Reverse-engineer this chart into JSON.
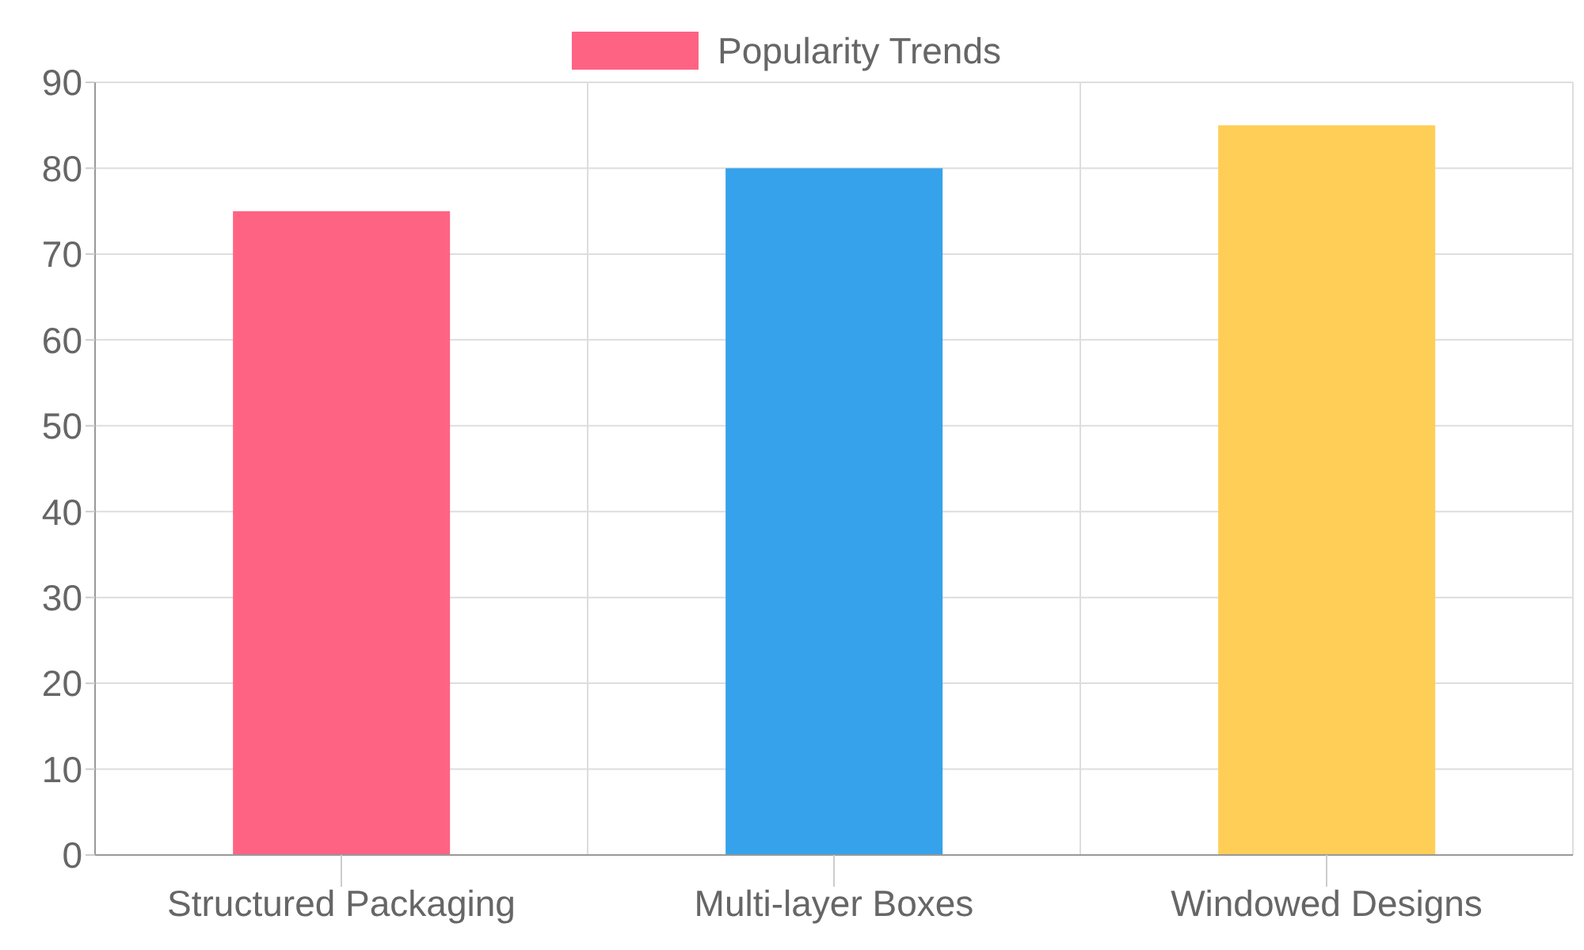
{
  "chart_data": {
    "type": "bar",
    "categories": [
      "Structured Packaging",
      "Multi-layer Boxes",
      "Windowed Designs"
    ],
    "series": [
      {
        "name": "Popularity Trends",
        "color": "#ff6384",
        "colors": [
          "#ff6384",
          "#36a2eb",
          "#ffce56"
        ],
        "values": [
          75,
          80,
          85
        ]
      }
    ],
    "ylim": [
      0,
      90
    ],
    "yticks": [
      0,
      10,
      20,
      30,
      40,
      50,
      60,
      70,
      80,
      90
    ],
    "grid": true,
    "legend": "top"
  }
}
